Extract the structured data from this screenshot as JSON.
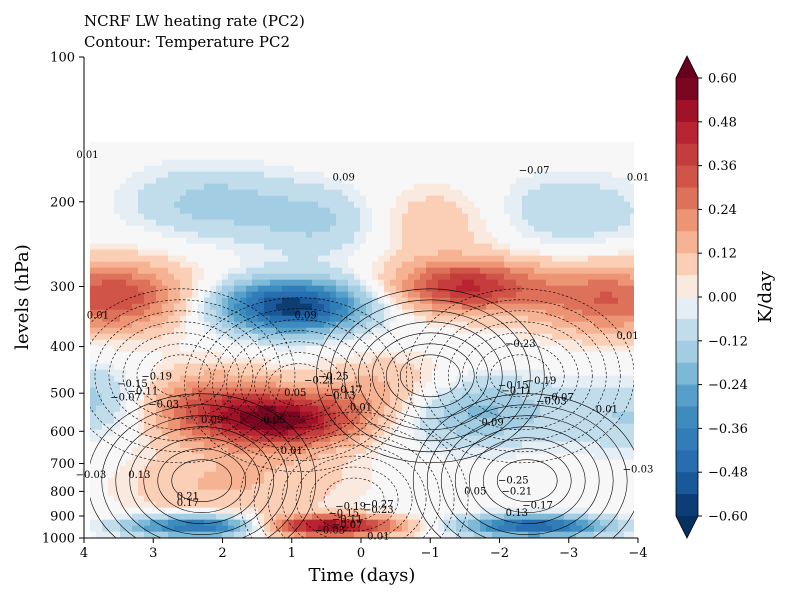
{
  "chart_data": {
    "type": "heatmap",
    "title": "NCRF LW heating rate (PC2)",
    "subtitle": "Contour: Temperature PC2",
    "xlabel": "Time (days)",
    "ylabel": "levels (hPa)",
    "x_ticks": [
      4,
      3,
      2,
      1,
      0,
      -1,
      -2,
      -3,
      -4
    ],
    "x_tick_labels": [
      "4",
      "3",
      "2",
      "1",
      "0",
      "−1",
      "−2",
      "−3",
      "−4"
    ],
    "xlim": [
      4,
      -4
    ],
    "y_ticks": [
      100,
      200,
      300,
      400,
      500,
      600,
      700,
      800,
      900,
      1000
    ],
    "y_tick_labels": [
      "100",
      "200",
      "300",
      "400",
      "500",
      "600",
      "700",
      "800",
      "900",
      "1000"
    ],
    "ylim": [
      1000,
      100
    ],
    "y_scale": "log",
    "data_extent": {
      "x": [
        4,
        -4
      ],
      "p": [
        150,
        1000
      ]
    },
    "colorbar": {
      "label": "K/day",
      "ticks": [
        0.6,
        0.48,
        0.36,
        0.24,
        0.12,
        0.0,
        -0.12,
        -0.24,
        -0.36,
        -0.48,
        -0.6
      ],
      "tick_labels": [
        "0.60",
        "0.48",
        "0.36",
        "0.24",
        "0.12",
        "0.00",
        "−0.12",
        "−0.24",
        "−0.36",
        "−0.48",
        "−0.60"
      ],
      "levels": [
        -0.6,
        0.6
      ],
      "extend": "both",
      "colormap": "RdBu_r"
    },
    "heating_features": [
      {
        "x": 1.0,
        "p": 330,
        "value": -0.58
      },
      {
        "x": 3.6,
        "p": 315,
        "value": 0.36
      },
      {
        "x": -1.5,
        "p": 300,
        "value": 0.42
      },
      {
        "x": -3.6,
        "p": 320,
        "value": 0.3
      },
      {
        "x": 1.1,
        "p": 570,
        "value": 0.5
      },
      {
        "x": 2.3,
        "p": 530,
        "value": 0.3
      },
      {
        "x": -0.5,
        "p": 500,
        "value": 0.18
      },
      {
        "x": 3.8,
        "p": 520,
        "value": -0.18
      },
      {
        "x": -1.5,
        "p": 540,
        "value": -0.24
      },
      {
        "x": -3.9,
        "p": 560,
        "value": -0.12
      },
      {
        "x": 0.5,
        "p": 945,
        "value": 0.55
      },
      {
        "x": 2.3,
        "p": 945,
        "value": -0.48
      },
      {
        "x": -2.5,
        "p": 945,
        "value": -0.48
      },
      {
        "x": 0.4,
        "p": 220,
        "value": -0.16
      },
      {
        "x": -0.8,
        "p": 220,
        "value": 0.14
      },
      {
        "x": 2.2,
        "p": 200,
        "value": -0.14
      },
      {
        "x": -3.0,
        "p": 210,
        "value": -0.12
      },
      {
        "x": 2.4,
        "p": 780,
        "value": 0.1
      },
      {
        "x": 1.0,
        "p": 760,
        "value": 0.08
      }
    ],
    "temperature_contours": {
      "line_style": {
        "positive": "solid",
        "negative": "dashed"
      },
      "centers": [
        {
          "x": 2.3,
          "p": 760,
          "sign": 1,
          "max": 0.27
        },
        {
          "x": -2.4,
          "p": 760,
          "sign": 1,
          "max": 0.27
        },
        {
          "x": 0.1,
          "p": 830,
          "sign": -1,
          "max": 0.27
        },
        {
          "x": 0.9,
          "p": 480,
          "sign": -1,
          "max": 0.27
        },
        {
          "x": -1.0,
          "p": 460,
          "sign": 1,
          "max": 0.27
        },
        {
          "x": 2.6,
          "p": 460,
          "sign": -1,
          "max": 0.21
        },
        {
          "x": -2.3,
          "p": 460,
          "sign": -1,
          "max": 0.21
        }
      ],
      "labels": [
        {
          "text": "0.01",
          "x": 3.95,
          "p": 160
        },
        {
          "text": "0.09",
          "x": 0.25,
          "p": 178
        },
        {
          "text": "−0.07",
          "x": -2.5,
          "p": 172
        },
        {
          "text": "0.01",
          "x": -4.0,
          "p": 178
        },
        {
          "text": "0.01",
          "x": 3.8,
          "p": 345
        },
        {
          "text": "0.09",
          "x": 0.8,
          "p": 345
        },
        {
          "text": "0.01",
          "x": -3.85,
          "p": 380
        },
        {
          "text": "−0.23",
          "x": -2.3,
          "p": 395
        },
        {
          "text": "−0.19",
          "x": 2.95,
          "p": 462
        },
        {
          "text": "−0.15",
          "x": 3.3,
          "p": 478
        },
        {
          "text": "−0.11",
          "x": 3.15,
          "p": 496
        },
        {
          "text": "−0.07",
          "x": 3.4,
          "p": 510
        },
        {
          "text": "−0.03",
          "x": 2.85,
          "p": 528
        },
        {
          "text": "−0.25",
          "x": 0.4,
          "p": 462
        },
        {
          "text": "−0.21",
          "x": 0.6,
          "p": 470
        },
        {
          "text": "−0.17",
          "x": 0.2,
          "p": 492
        },
        {
          "text": "−0.13",
          "x": 0.3,
          "p": 505
        },
        {
          "text": "0.05",
          "x": 0.95,
          "p": 500
        },
        {
          "text": "0.01",
          "x": 0.0,
          "p": 535
        },
        {
          "text": "−0.19",
          "x": -2.6,
          "p": 472
        },
        {
          "text": "−0.15",
          "x": -2.2,
          "p": 482
        },
        {
          "text": "−0.11",
          "x": -2.25,
          "p": 495
        },
        {
          "text": "−0.07",
          "x": -2.85,
          "p": 510
        },
        {
          "text": "−0.03",
          "x": -2.75,
          "p": 520
        },
        {
          "text": "0.01",
          "x": -3.55,
          "p": 540
        },
        {
          "text": "0.09",
          "x": 2.15,
          "p": 568
        },
        {
          "text": "0.05",
          "x": 1.25,
          "p": 568
        },
        {
          "text": "0.09",
          "x": -1.9,
          "p": 575
        },
        {
          "text": "0.01",
          "x": 1.0,
          "p": 660
        },
        {
          "text": "−0.03",
          "x": 3.9,
          "p": 740
        },
        {
          "text": "0.13",
          "x": 3.2,
          "p": 740
        },
        {
          "text": "−0.03",
          "x": -4.0,
          "p": 720
        },
        {
          "text": "0.21",
          "x": 2.5,
          "p": 820
        },
        {
          "text": "0.17",
          "x": 2.5,
          "p": 845
        },
        {
          "text": "−0.25",
          "x": -2.2,
          "p": 760
        },
        {
          "text": "−0.21",
          "x": -2.25,
          "p": 800
        },
        {
          "text": "−0.17",
          "x": -2.55,
          "p": 855
        },
        {
          "text": "0.13",
          "x": -2.25,
          "p": 888
        },
        {
          "text": "0.05",
          "x": -1.65,
          "p": 800
        },
        {
          "text": "−0.19",
          "x": 0.15,
          "p": 860
        },
        {
          "text": "−0.15",
          "x": 0.25,
          "p": 890
        },
        {
          "text": "−0.11",
          "x": 0.2,
          "p": 915
        },
        {
          "text": "−0.07",
          "x": 0.2,
          "p": 940
        },
        {
          "text": "−0.03",
          "x": 0.45,
          "p": 965
        },
        {
          "text": "−0.27",
          "x": -0.25,
          "p": 852
        },
        {
          "text": "−0.23",
          "x": -0.25,
          "p": 875
        },
        {
          "text": "0.01",
          "x": -0.25,
          "p": 992
        }
      ]
    }
  }
}
